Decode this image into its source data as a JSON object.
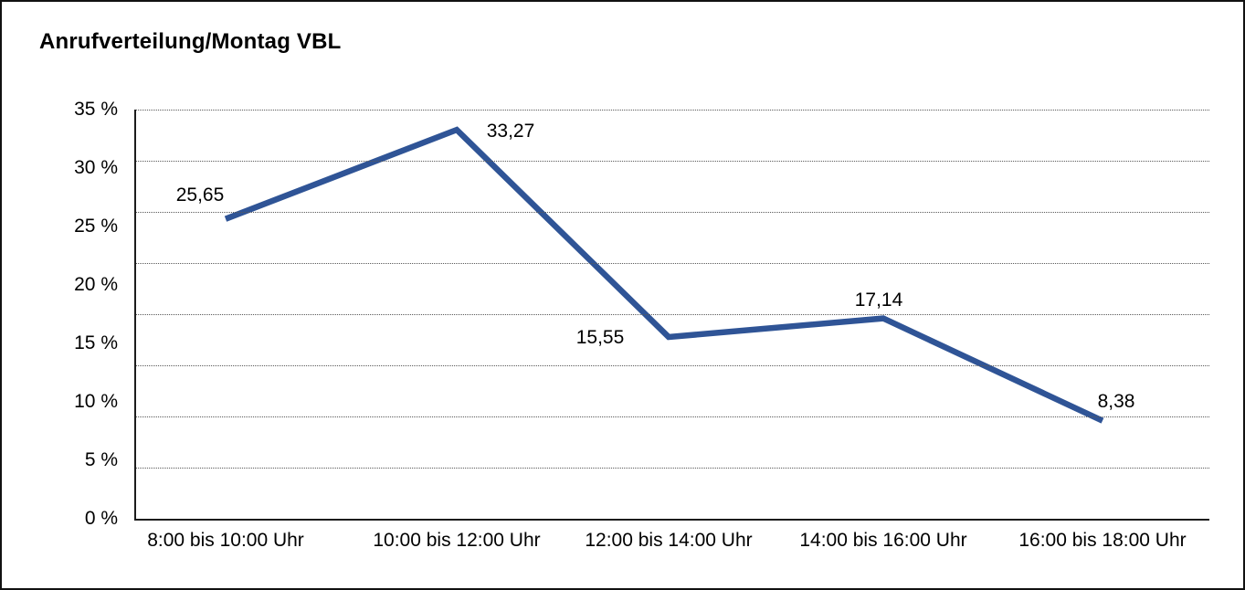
{
  "title": "Anrufverteilung/Montag VBL",
  "chart_data": {
    "type": "line",
    "title": "Anrufverteilung/Montag VBL",
    "categories": [
      "8:00 bis 10:00 Uhr",
      "10:00 bis 12:00 Uhr",
      "12:00 bis 14:00 Uhr",
      "14:00 bis 16:00 Uhr",
      "16:00 bis 18:00 Uhr"
    ],
    "values": [
      25.65,
      33.27,
      15.55,
      17.14,
      8.38
    ],
    "value_labels": [
      "25,65",
      "33,27",
      "15,55",
      "17,14",
      "8,38"
    ],
    "xlabel": "",
    "ylabel": "",
    "ylim": [
      0,
      35
    ],
    "ytick_step": 5,
    "ytick_labels": [
      "35 %",
      "30 %",
      "25 %",
      "20 %",
      "15 %",
      "10 %",
      "5 %",
      "0 %"
    ],
    "gridline_divisions": 8,
    "grid": "horizontal-dotted",
    "legend": "none",
    "line_color": "#2F5496",
    "axis_color": "#1c1c1c",
    "text_color": "#000000"
  }
}
